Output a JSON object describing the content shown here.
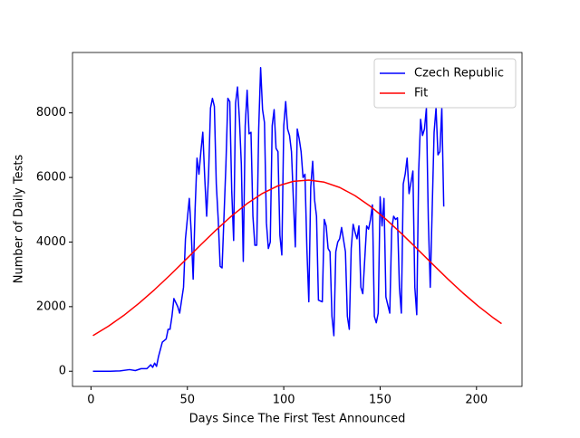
{
  "chart_data": {
    "type": "line",
    "xlabel": "Days Since The First Test Announced",
    "ylabel": "Number of Daily Tests",
    "xlim": [
      -9.6,
      223.6
    ],
    "xticks": [
      0,
      50,
      100,
      150,
      200
    ],
    "ylim": [
      -470,
      9870
    ],
    "yticks": [
      0,
      2000,
      4000,
      6000,
      8000
    ],
    "legend": "upper right",
    "series": [
      {
        "name": "Czech Republic",
        "color": "#0000ff",
        "x": [
          1,
          10,
          15,
          20,
          23,
          26,
          29,
          31,
          32,
          33,
          34,
          35,
          37,
          39,
          40,
          41,
          42,
          43,
          45,
          46,
          48,
          49,
          51,
          52,
          53,
          54,
          55,
          56,
          57,
          58,
          59,
          60,
          61,
          62,
          63,
          64,
          65,
          66,
          67,
          68,
          70,
          71,
          72,
          73,
          74,
          75,
          76,
          77,
          78,
          79,
          80,
          81,
          82,
          83,
          84,
          85,
          86,
          87,
          88,
          89,
          90,
          91,
          92,
          93,
          94,
          95,
          96,
          97,
          98,
          99,
          100,
          101,
          102,
          103,
          104,
          105,
          106,
          107,
          108,
          109,
          110,
          111,
          112,
          113,
          114,
          115,
          116,
          117,
          118,
          120,
          121,
          122,
          123,
          124,
          125,
          126,
          127,
          128,
          129,
          130,
          132,
          133,
          134,
          135,
          136,
          137,
          138,
          139,
          140,
          141,
          143,
          144,
          145,
          146,
          147,
          148,
          149,
          150,
          151,
          152,
          153,
          155,
          156,
          157,
          158,
          159,
          160,
          161,
          162,
          163,
          164,
          165,
          167,
          168,
          169,
          170,
          171,
          172,
          173,
          174,
          175,
          176,
          178,
          179,
          180,
          181,
          182,
          183
        ],
        "values": [
          0,
          0,
          10,
          50,
          20,
          80,
          80,
          200,
          120,
          250,
          150,
          450,
          900,
          1000,
          1300,
          1300,
          1700,
          2250,
          2000,
          1800,
          2600,
          4100,
          5350,
          4300,
          2850,
          5000,
          6600,
          6100,
          6800,
          7400,
          6000,
          4800,
          6100,
          8150,
          8450,
          8200,
          5800,
          4700,
          3250,
          3200,
          6400,
          8450,
          8350,
          5600,
          4050,
          8300,
          8800,
          7800,
          6400,
          3400,
          7600,
          8700,
          7350,
          7400,
          4800,
          3900,
          3900,
          7500,
          9400,
          8100,
          7700,
          4600,
          3800,
          4000,
          7600,
          8100,
          6900,
          6800,
          4200,
          3600,
          7600,
          8350,
          7500,
          7300,
          6800,
          5300,
          3850,
          7500,
          7200,
          6800,
          6000,
          6100,
          3800,
          2150,
          5700,
          6500,
          5300,
          4800,
          2200,
          2150,
          4700,
          4500,
          3800,
          3700,
          1700,
          1100,
          3700,
          4000,
          4100,
          4450,
          3700,
          1700,
          1300,
          3800,
          4550,
          4300,
          4100,
          4500,
          2600,
          2400,
          4500,
          4400,
          4700,
          5150,
          1700,
          1500,
          1800,
          5400,
          4500,
          5350,
          2300,
          1800,
          4400,
          4800,
          4700,
          4750,
          2600,
          1800,
          5800,
          6100,
          6600,
          5500,
          6200,
          2600,
          1750,
          6200,
          7800,
          7300,
          7500,
          8150,
          4700,
          2600,
          7400,
          8150,
          6700,
          6800,
          8150,
          5100
        ]
      },
      {
        "name": "Fit",
        "color": "#ff0000",
        "x": [
          1,
          9,
          17,
          25,
          33,
          41,
          49,
          57,
          65,
          73,
          81,
          89,
          97,
          105,
          113,
          121,
          129,
          137,
          145,
          153,
          161,
          169,
          177,
          185,
          193,
          201,
          209,
          213
        ],
        "values": [
          1103,
          1394,
          1729,
          2109,
          2528,
          2977,
          3445,
          3919,
          4380,
          4811,
          5193,
          5508,
          5741,
          5880,
          5919,
          5855,
          5691,
          5436,
          5103,
          4708,
          4267,
          3801,
          3328,
          2863,
          2420,
          2011,
          1641,
          1473
        ]
      }
    ]
  }
}
